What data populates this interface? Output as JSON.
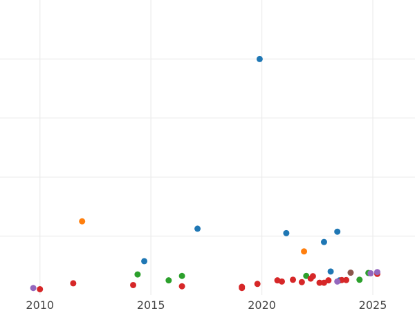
{
  "chart_data": {
    "type": "scatter",
    "title": "",
    "xlabel": "",
    "ylabel": "",
    "xlim": [
      2008.2,
      2026.9
    ],
    "ylim": [
      0,
      100
    ],
    "grid": true,
    "x_ticks": [
      2010,
      2015,
      2020,
      2025
    ],
    "x_tick_labels": [
      "2010",
      "2015",
      "2020",
      "2025"
    ],
    "y_gridlines": [
      20,
      40,
      60,
      80
    ],
    "y_tick_labels_shown": false,
    "legend": "none",
    "colors": {
      "blue": "#1f77b4",
      "orange": "#ff7f0e",
      "green": "#2ca02c",
      "red": "#d62728",
      "purple": "#9467bd",
      "brown": "#8c564b"
    },
    "series": [
      {
        "color": "blue",
        "x": [
          2014.7,
          2017.1,
          2019.9,
          2021.1,
          2022.8,
          2023.1,
          2023.4,
          2023.5
        ],
        "y": [
          11.5,
          22.5,
          80.0,
          21.0,
          18.0,
          8.0,
          21.5,
          5.0
        ]
      },
      {
        "color": "orange",
        "x": [
          2011.9,
          2021.9
        ],
        "y": [
          25.0,
          14.8
        ]
      },
      {
        "color": "green",
        "x": [
          2014.4,
          2015.8,
          2016.4,
          2022.0,
          2024.4,
          2024.8
        ],
        "y": [
          7.0,
          5.0,
          6.5,
          6.5,
          5.2,
          7.5
        ]
      },
      {
        "color": "red",
        "x": [
          2010.0,
          2011.5,
          2014.2,
          2016.4,
          2019.1,
          2019.1,
          2019.8,
          2020.7,
          2020.9,
          2021.4,
          2021.8,
          2022.2,
          2022.3,
          2022.6,
          2022.8,
          2023.0,
          2023.6,
          2023.8,
          2025.2
        ],
        "y": [
          2.0,
          4.0,
          3.4,
          3.0,
          2.8,
          2.4,
          3.8,
          5.0,
          4.6,
          5.2,
          4.4,
          5.6,
          6.4,
          4.2,
          4.2,
          5.0,
          5.1,
          5.1,
          7.2
        ]
      },
      {
        "color": "purple",
        "x": [
          2009.7,
          2023.4,
          2024.9,
          2025.2
        ],
        "y": [
          2.4,
          4.6,
          7.4,
          7.8
        ]
      },
      {
        "color": "brown",
        "x": [
          2024.0
        ],
        "y": [
          7.6
        ]
      }
    ]
  }
}
